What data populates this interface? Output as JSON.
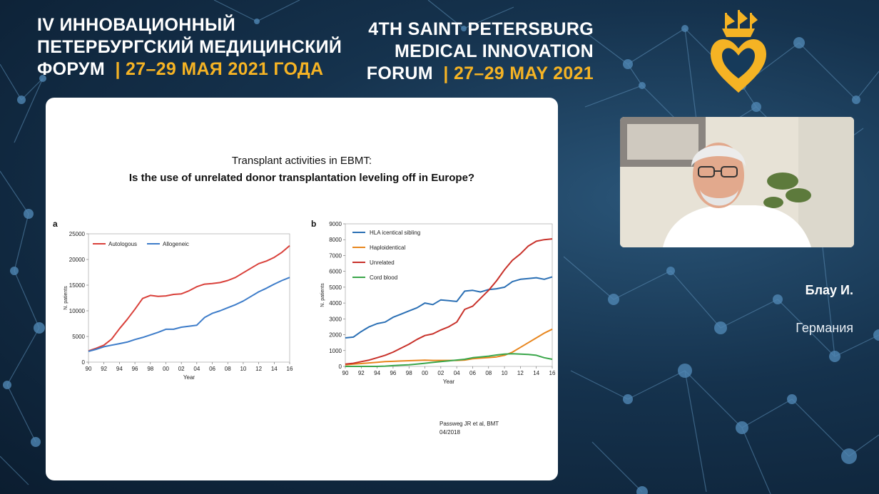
{
  "header_ru": {
    "line1": "IV ИННОВАЦИОННЫЙ",
    "line2": "ПЕТЕРБУРГСКИЙ МЕДИЦИНСКИЙ",
    "line3": "ФОРУМ",
    "dates": "| 27–29 МАЯ 2021 ГОДА"
  },
  "header_en": {
    "line1": "4TH SAINT PETERSBURG",
    "line2": "MEDICAL INNOVATION",
    "line3": "FORUM",
    "dates": "| 27–29 MAY 2021"
  },
  "colors": {
    "accent": "#f5b324",
    "background": "#15324d"
  },
  "slide": {
    "title": "Transplant activities in EBMT:",
    "subtitle": "Is the use of unrelated donor transplantation leveling off in Europe?",
    "citation_line1": "Passweg JR et al, BMT",
    "citation_line2": "04/2018"
  },
  "speaker": {
    "name": "Блау И.",
    "country": "Германия"
  },
  "chart_data": [
    {
      "type": "line",
      "panel_label": "a",
      "xlabel": "Year",
      "ylabel": "N. patients",
      "x": [
        90,
        91,
        92,
        93,
        94,
        95,
        96,
        97,
        98,
        99,
        100,
        101,
        102,
        103,
        104,
        105,
        106,
        107,
        108,
        109,
        110,
        111,
        112,
        113,
        114,
        115,
        116
      ],
      "tick_labels": [
        "90",
        "92",
        "94",
        "96",
        "98",
        "00",
        "02",
        "04",
        "06",
        "08",
        "10",
        "12",
        "14",
        "16"
      ],
      "ylim": [
        0,
        25000
      ],
      "yticks": [
        0,
        5000,
        10000,
        15000,
        20000,
        25000
      ],
      "legend": "top-left",
      "series": [
        {
          "name": "Autologous",
          "color": "#d9403a",
          "values": [
            2200,
            2700,
            3300,
            4500,
            6500,
            8300,
            10300,
            12400,
            13000,
            12800,
            12900,
            13200,
            13300,
            13900,
            14700,
            15200,
            15300,
            15500,
            15900,
            16500,
            17400,
            18300,
            19200,
            19700,
            20400,
            21400,
            22700
          ]
        },
        {
          "name": "Allogeneic",
          "color": "#3d7cc9",
          "values": [
            2100,
            2500,
            3000,
            3300,
            3600,
            3900,
            4400,
            4800,
            5300,
            5800,
            6400,
            6400,
            6800,
            7000,
            7200,
            8700,
            9500,
            10000,
            10600,
            11200,
            11900,
            12800,
            13700,
            14400,
            15200,
            15900,
            16500
          ]
        }
      ]
    },
    {
      "type": "line",
      "panel_label": "b",
      "xlabel": "Year",
      "ylabel": "N. patients",
      "x": [
        90,
        91,
        92,
        93,
        94,
        95,
        96,
        97,
        98,
        99,
        100,
        101,
        102,
        103,
        104,
        105,
        106,
        107,
        108,
        109,
        110,
        111,
        112,
        113,
        114,
        115,
        116
      ],
      "tick_labels": [
        "90",
        "92",
        "94",
        "96",
        "98",
        "00",
        "02",
        "04",
        "06",
        "08",
        "10",
        "12",
        "14",
        "16"
      ],
      "ylim": [
        0,
        9000
      ],
      "yticks": [
        0,
        1000,
        2000,
        3000,
        4000,
        5000,
        6000,
        7000,
        8000,
        9000
      ],
      "legend": "top-left",
      "series": [
        {
          "name": "HLA icentical sibling",
          "color": "#2a6fb4",
          "values": [
            1800,
            1850,
            2200,
            2500,
            2700,
            2800,
            3100,
            3300,
            3500,
            3700,
            4000,
            3900,
            4200,
            4150,
            4100,
            4750,
            4800,
            4700,
            4850,
            4900,
            5000,
            5350,
            5500,
            5550,
            5600,
            5500,
            5650
          ]
        },
        {
          "name": "Haploidentical",
          "color": "#e8861e",
          "values": [
            100,
            150,
            180,
            220,
            260,
            300,
            320,
            340,
            360,
            380,
            390,
            380,
            380,
            380,
            380,
            400,
            480,
            520,
            560,
            600,
            700,
            900,
            1200,
            1500,
            1800,
            2100,
            2350
          ]
        },
        {
          "name": "Unrelated",
          "color": "#c8312a",
          "values": [
            150,
            200,
            300,
            400,
            550,
            700,
            900,
            1150,
            1400,
            1700,
            1950,
            2050,
            2300,
            2500,
            2800,
            3600,
            3800,
            4300,
            4800,
            5400,
            6100,
            6700,
            7100,
            7600,
            7900,
            8000,
            8050
          ]
        },
        {
          "name": "Cord blood",
          "color": "#3aa64a",
          "values": [
            0,
            0,
            0,
            0,
            0,
            20,
            50,
            80,
            100,
            150,
            200,
            250,
            300,
            350,
            400,
            450,
            550,
            600,
            650,
            720,
            780,
            800,
            780,
            750,
            700,
            550,
            450
          ]
        }
      ]
    }
  ]
}
